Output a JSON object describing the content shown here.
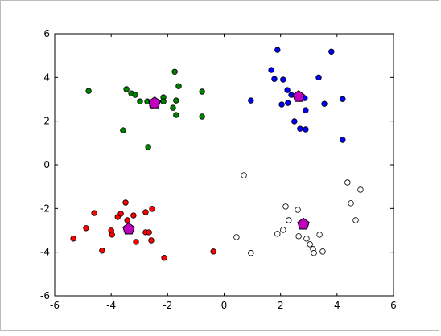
{
  "chart_data": {
    "type": "scatter",
    "xlim": [
      -6,
      6
    ],
    "xticks": [
      -6,
      -4,
      -2,
      0,
      2,
      4,
      6
    ],
    "ylim": [
      -6,
      6
    ],
    "yticks": [
      -6,
      -4,
      -2,
      0,
      2,
      4,
      6
    ],
    "series": [
      {
        "color": "#008000",
        "marker": "circle",
        "x": [
          -4.8,
          -3.46,
          -3.29,
          -3.15,
          -2.98,
          -2.72,
          -2.55,
          -2.41,
          -2.15,
          -2.15,
          -1.75,
          -1.61,
          -1.7,
          -1.81,
          -1.7,
          -0.78,
          -0.78,
          -3.58,
          -2.69
        ],
        "y": [
          3.38,
          3.46,
          3.27,
          3.2,
          2.9,
          2.9,
          2.72,
          2.76,
          3.09,
          2.9,
          4.26,
          3.6,
          2.94,
          2.61,
          2.28,
          3.35,
          2.21,
          1.58,
          0.81
        ]
      },
      {
        "color": "#0000ff",
        "marker": "circle",
        "x": [
          1.89,
          3.8,
          1.67,
          1.78,
          2.09,
          2.24,
          2.38,
          2.26,
          2.04,
          0.95,
          3.35,
          3.55,
          4.2,
          2.86,
          2.89,
          2.49,
          2.69,
          2.89,
          4.2
        ],
        "y": [
          5.26,
          5.18,
          4.34,
          3.93,
          3.9,
          3.42,
          3.2,
          2.83,
          2.76,
          2.94,
          4.0,
          2.79,
          3.01,
          3.05,
          2.5,
          1.99,
          1.65,
          1.62,
          1.14
        ]
      },
      {
        "color": "#ff0000",
        "marker": "circle",
        "x": [
          -5.34,
          -4.89,
          -4.6,
          -4.32,
          -4.0,
          -3.97,
          -3.77,
          -3.66,
          -3.49,
          -3.43,
          -3.21,
          -3.12,
          -2.78,
          -2.55,
          -2.78,
          -2.66,
          -2.58,
          -2.12,
          -0.38
        ],
        "y": [
          -3.38,
          -2.9,
          -2.21,
          -3.93,
          -3.01,
          -3.2,
          -2.39,
          -2.24,
          -1.73,
          -2.54,
          -2.32,
          -3.53,
          -2.17,
          -2.02,
          -3.09,
          -3.09,
          -3.46,
          -4.26,
          -3.97
        ]
      },
      {
        "color": "#ffffff",
        "marker": "circle",
        "x": [
          0.7,
          0.44,
          0.95,
          1.89,
          2.09,
          2.18,
          2.29,
          2.61,
          2.64,
          2.92,
          3.04,
          3.15,
          3.18,
          3.38,
          3.49,
          4.37,
          4.49,
          4.83,
          4.66
        ],
        "y": [
          -0.48,
          -3.31,
          -4.04,
          -3.16,
          -2.98,
          -1.91,
          -2.54,
          -2.06,
          -3.27,
          -3.38,
          -3.64,
          -3.86,
          -4.04,
          -3.2,
          -3.97,
          -0.81,
          -1.76,
          -1.14,
          -2.54
        ]
      },
      {
        "color": "#bf00bf",
        "marker": "pentagon",
        "x": [
          -2.46,
          2.64,
          -3.38,
          2.81
        ],
        "y": [
          2.83,
          3.12,
          -2.94,
          -2.72
        ]
      }
    ]
  }
}
